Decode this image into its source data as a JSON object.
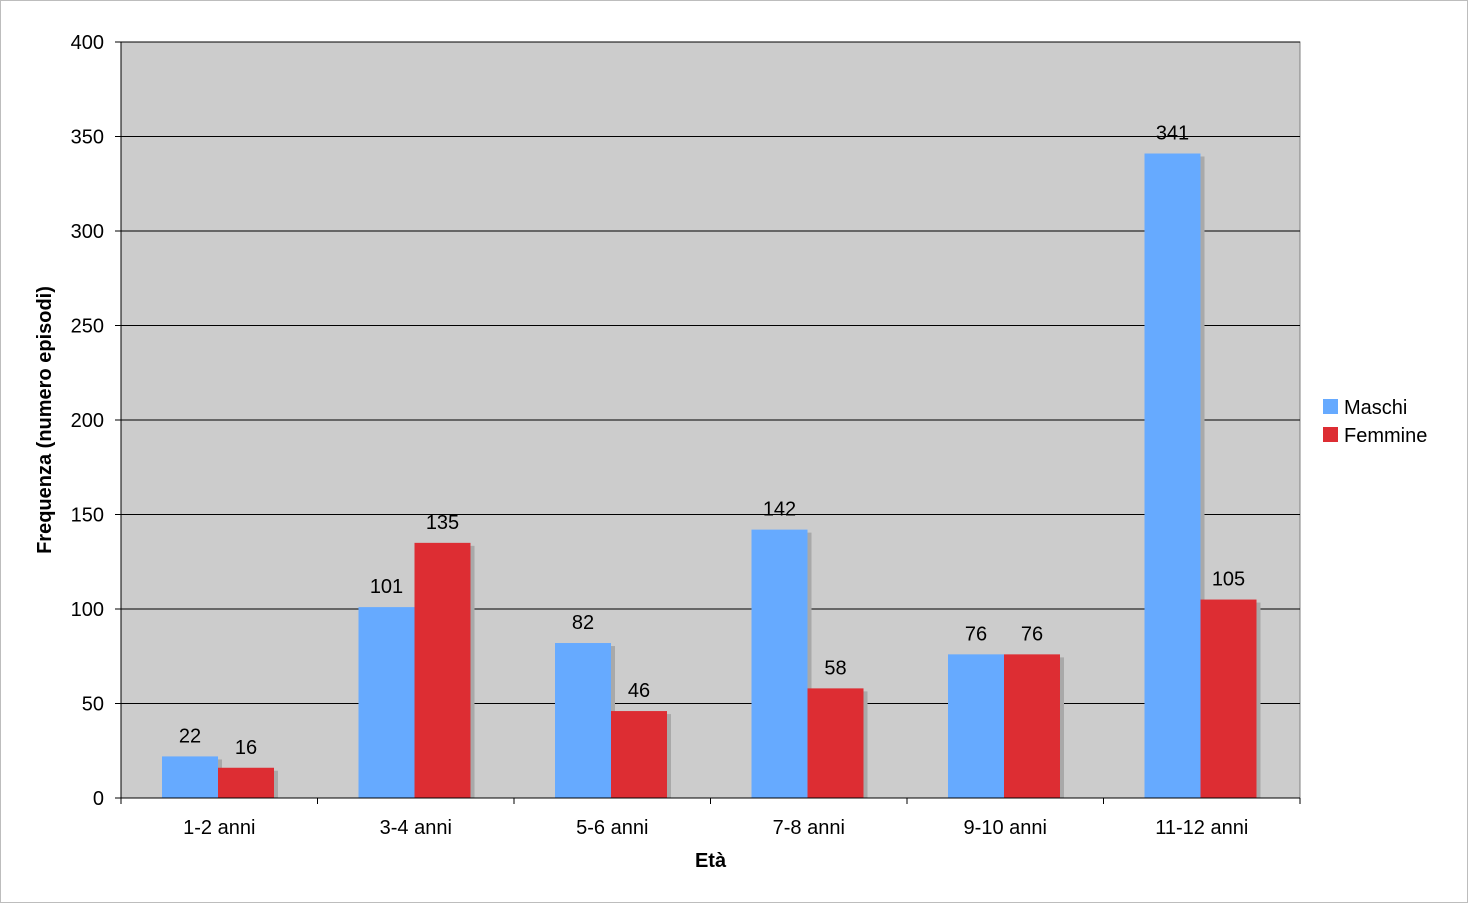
{
  "chart_data": {
    "type": "bar",
    "title": "",
    "xlabel": "Età",
    "ylabel": "Frequenza (numero episodi)",
    "categories": [
      "1-2 anni",
      "3-4 anni",
      "5-6 anni",
      "7-8 anni",
      "9-10 anni",
      "11-12 anni"
    ],
    "series": [
      {
        "name": "Maschi",
        "values": [
          22,
          101,
          82,
          142,
          76,
          341
        ],
        "color": "#66aaff"
      },
      {
        "name": "Femmine",
        "values": [
          16,
          135,
          46,
          58,
          76,
          105
        ],
        "color": "#dd2d33"
      }
    ],
    "ylim": [
      0,
      400
    ],
    "yticks": [
      0,
      50,
      100,
      150,
      200,
      250,
      300,
      350,
      400
    ],
    "grid": true,
    "legend_position": "right",
    "plot_background": "#cccccc"
  }
}
